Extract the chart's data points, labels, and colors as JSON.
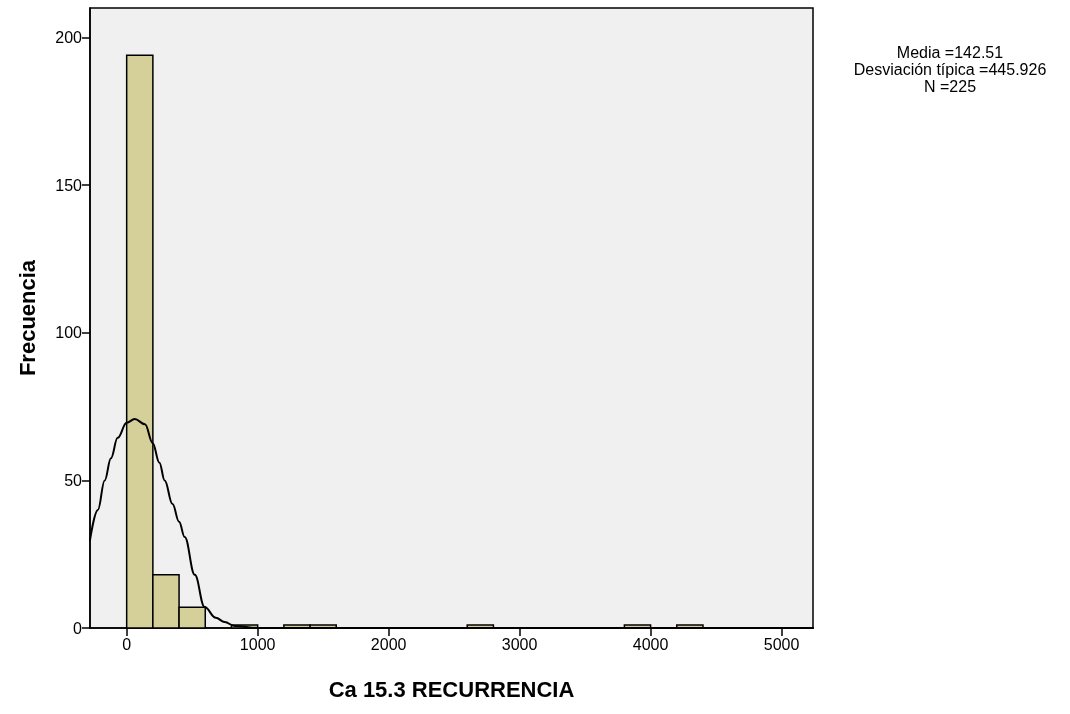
{
  "chart_data": {
    "type": "histogram",
    "xlabel": "Ca 15.3 RECURRENCIA",
    "ylabel": "Frecuencia",
    "annotations": [
      "Media =142.51",
      "Desviación típica =445.926",
      "N =225"
    ],
    "bins": [
      0,
      200,
      400,
      600,
      800,
      1000,
      1200,
      1400,
      1600,
      1800,
      2000,
      2200,
      2400,
      2600,
      2800,
      3000,
      3200,
      3400,
      3600,
      3800,
      4000,
      4200,
      4400
    ],
    "values": [
      194,
      18,
      7,
      0,
      1,
      0,
      1,
      1,
      0,
      0,
      0,
      0,
      0,
      1,
      0,
      0,
      0,
      0,
      0,
      1,
      0,
      1
    ],
    "color": "#d5d09a",
    "series": [
      {
        "type": "line",
        "color": "#000000",
        "x": [
          -280,
          -220,
          -168,
          -120,
          -69,
          0,
          61,
          140,
          198,
          250,
          290,
          350,
          400,
          443,
          520,
          595,
          680,
          748,
          824,
          1000,
          5240
        ],
        "values": [
          29.8,
          40,
          50,
          57.5,
          64.4,
          69.5,
          70.8,
          69,
          62.7,
          56,
          50,
          42,
          36,
          30.8,
          18,
          7.1,
          3.5,
          2,
          0.7,
          0,
          0
        ]
      }
    ],
    "xlim": [
      -280,
      5240
    ],
    "xticks": [
      0,
      1000,
      2000,
      3000,
      4000,
      5000
    ],
    "ylim": [
      0,
      210
    ],
    "yticks": [
      0,
      50,
      100,
      150,
      200
    ],
    "grid": false
  }
}
